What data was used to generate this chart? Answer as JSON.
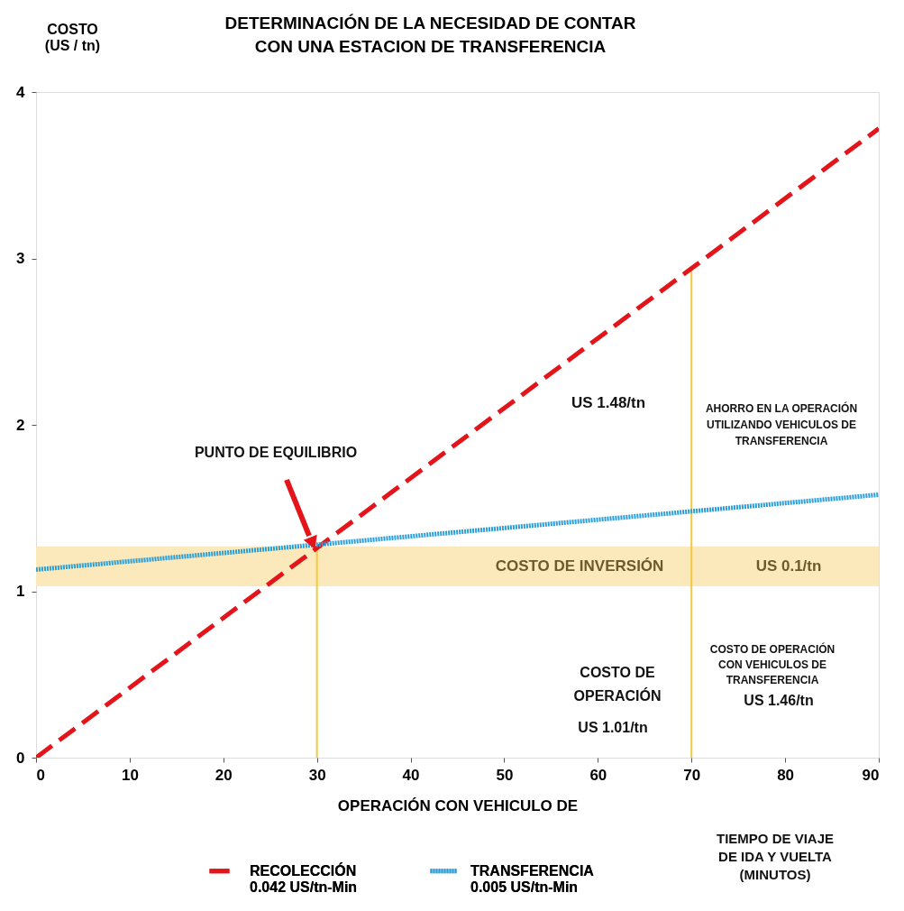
{
  "chart_data": {
    "type": "line",
    "title": "DETERMINACIÓN DE LA NECESIDAD DE CONTAR\nCON UNA ESTACION DE TRANSFERENCIA",
    "xlabel": "OPERACIÓN CON VEHICULO DE",
    "ylabel": "COSTO\n(US / tn)",
    "xlim": [
      0,
      90
    ],
    "xticks": [
      0,
      10,
      20,
      30,
      40,
      50,
      60,
      70,
      80,
      90
    ],
    "ylim": [
      0,
      4
    ],
    "yticks": [
      0,
      1,
      2,
      3,
      4
    ],
    "grid": false,
    "legend": "bottom",
    "marker": "none",
    "series": [
      {
        "name": "RECOLECCIÓN\n0.042 US/tn-Min",
        "color": "#e3151b",
        "line_style": "dashed",
        "x": [
          0,
          90
        ],
        "values": [
          0,
          3.78
        ]
      },
      {
        "name": "TRANSFERENCIA\n0.005 US/tn-Min",
        "color": "#2a9fd8",
        "line_style": "dotted",
        "x": [
          0,
          90
        ],
        "values": [
          1.13,
          1.58
        ]
      },
      {
        "color": "#f5c93a",
        "line_style": "solid",
        "x": [
          30,
          30
        ],
        "values": [
          0,
          1.25
        ]
      },
      {
        "color": "#f5c93a",
        "line_style": "solid",
        "x": [
          70,
          70
        ],
        "values": [
          0,
          2.94
        ]
      }
    ],
    "bands": [
      {
        "axis": "y",
        "from": 1.03,
        "to": 1.27,
        "color": "#fbe9bb"
      }
    ],
    "annotations": [
      "PUNTO DE EQUILIBRIO",
      "US 1.48/tn",
      "AHORRO EN LA OPERACIÓN\nUTILIZANDO VEHICULOS DE\nTRANSFERENCIA",
      "COSTO DE INVERSIÓN",
      "US 0.1/tn",
      "COSTO DE\nOPERACIÓN",
      "US 1.01/tn",
      "COSTO DE OPERACIÓN\nCON VEHICULOS DE\nTRANSFERENCIA",
      "US 1.46/tn",
      "TIEMPO DE VIAJE\nDE IDA Y VUELTA\n(MINUTOS)"
    ]
  }
}
